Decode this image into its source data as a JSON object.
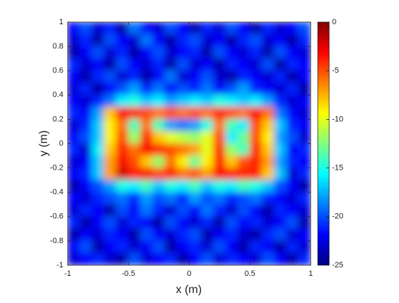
{
  "chart_data": {
    "type": "heatmap",
    "xlabel": "x (m)",
    "ylabel": "y (m)",
    "xlim": [
      -1,
      1
    ],
    "ylim": [
      -1,
      1
    ],
    "xticks": [
      -1,
      -0.5,
      0,
      0.5,
      1
    ],
    "yticks": [
      -1,
      -0.8,
      -0.6,
      -0.4,
      -0.2,
      0,
      0.2,
      0.4,
      0.6,
      0.8,
      1
    ],
    "colormap": "jet",
    "clim": [
      -25,
      0
    ],
    "cticks": [
      -25,
      -20,
      -15,
      -10,
      -5,
      0
    ],
    "values": [
      [
        -22,
        -20,
        -23,
        -21,
        -24,
        -19,
        -22,
        -23,
        -20,
        -22,
        -24,
        -21,
        -23,
        -20,
        -22,
        -24,
        -21,
        -23,
        -22,
        -20
      ],
      [
        -23,
        -21,
        -24,
        -20,
        -22,
        -23,
        -19,
        -22,
        -24,
        -21,
        -20,
        -23,
        -22,
        -24,
        -21,
        -20,
        -23,
        -22,
        -24,
        -21
      ],
      [
        -24,
        -22,
        -20,
        -23,
        -21,
        -24,
        -22,
        -20,
        -23,
        -22,
        -21,
        -24,
        -20,
        -22,
        -23,
        -21,
        -24,
        -20,
        -22,
        -23
      ],
      [
        -21,
        -23,
        -22,
        -24,
        -20,
        -22,
        -23,
        -21,
        -24,
        -20,
        -23,
        -22,
        -24,
        -21,
        -22,
        -23,
        -20,
        -24,
        -21,
        -22
      ],
      [
        -22,
        -24,
        -21,
        -20,
        -23,
        -21,
        -24,
        -22,
        -19,
        -23,
        -22,
        -20,
        -23,
        -24,
        -21,
        -22,
        -23,
        -21,
        -24,
        -22
      ],
      [
        -23,
        -21,
        -24,
        -22,
        -20,
        -18,
        -21,
        -19,
        -22,
        -20,
        -21,
        -19,
        -22,
        -20,
        -18,
        -21,
        -22,
        -23,
        -21,
        -24
      ],
      [
        -22,
        -23,
        -21,
        -19,
        -16,
        -15,
        -17,
        -16,
        -18,
        -17,
        -16,
        -17,
        -15,
        -16,
        -17,
        -16,
        -18,
        -21,
        -23,
        -22
      ],
      [
        -21,
        -22,
        -18,
        -8,
        -3,
        -4,
        -5,
        -6,
        -5,
        -6,
        -5,
        -6,
        -4,
        -5,
        -6,
        -3,
        -6,
        -19,
        -22,
        -23
      ],
      [
        -23,
        -21,
        -17,
        -9,
        -6,
        -14,
        -6,
        -14,
        -18,
        -19,
        -18,
        -15,
        -6,
        -14,
        -16,
        -5,
        -8,
        -17,
        -21,
        -22
      ],
      [
        -22,
        -20,
        -17,
        -9,
        -5,
        -12,
        -4,
        -8,
        -10,
        -11,
        -12,
        -10,
        -5,
        -16,
        -13,
        -5,
        -9,
        -18,
        -20,
        -23
      ],
      [
        -21,
        -23,
        -16,
        -8,
        -4,
        -6,
        -3,
        -4,
        -5,
        -6,
        -7,
        -10,
        -4,
        -12,
        -14,
        -4,
        -8,
        -17,
        -22,
        -21
      ],
      [
        -23,
        -22,
        -17,
        -7,
        -3,
        -5,
        -8,
        -12,
        -6,
        -9,
        -13,
        -9,
        -4,
        -8,
        -5,
        -4,
        -7,
        -18,
        -21,
        -22
      ],
      [
        -22,
        -21,
        -17,
        -7,
        -2,
        -4,
        -3,
        -5,
        -4,
        -6,
        -5,
        -7,
        -3,
        -4,
        -4,
        -4,
        -8,
        -17,
        -23,
        -21
      ],
      [
        -24,
        -22,
        -20,
        -18,
        -15,
        -16,
        -14,
        -17,
        -15,
        -16,
        -14,
        -17,
        -15,
        -16,
        -14,
        -15,
        -17,
        -20,
        -22,
        -24
      ],
      [
        -22,
        -23,
        -21,
        -20,
        -19,
        -21,
        -18,
        -20,
        -19,
        -21,
        -18,
        -20,
        -19,
        -21,
        -20,
        -19,
        -21,
        -22,
        -23,
        -21
      ],
      [
        -23,
        -21,
        -22,
        -24,
        -20,
        -22,
        -19,
        -21,
        -23,
        -20,
        -22,
        -19,
        -21,
        -23,
        -20,
        -22,
        -24,
        -21,
        -22,
        -23
      ],
      [
        -21,
        -24,
        -22,
        -20,
        -23,
        -21,
        -22,
        -24,
        -20,
        -22,
        -23,
        -21,
        -24,
        -20,
        -22,
        -21,
        -23,
        -22,
        -20,
        -24
      ],
      [
        -24,
        -22,
        -23,
        -21,
        -22,
        -24,
        -20,
        -22,
        -23,
        -21,
        -20,
        -24,
        -22,
        -21,
        -23,
        -24,
        -21,
        -20,
        -23,
        -22
      ],
      [
        -22,
        -20,
        -24,
        -22,
        -21,
        -23,
        -22,
        -20,
        -24,
        -22,
        -21,
        -23,
        -20,
        -22,
        -24,
        -21,
        -22,
        -24,
        -21,
        -23
      ],
      [
        -23,
        -22,
        -21,
        -23,
        -24,
        -20,
        -23,
        -22,
        -21,
        -24,
        -22,
        -20,
        -23,
        -21,
        -22,
        -23,
        -20,
        -22,
        -24,
        -21
      ]
    ]
  }
}
